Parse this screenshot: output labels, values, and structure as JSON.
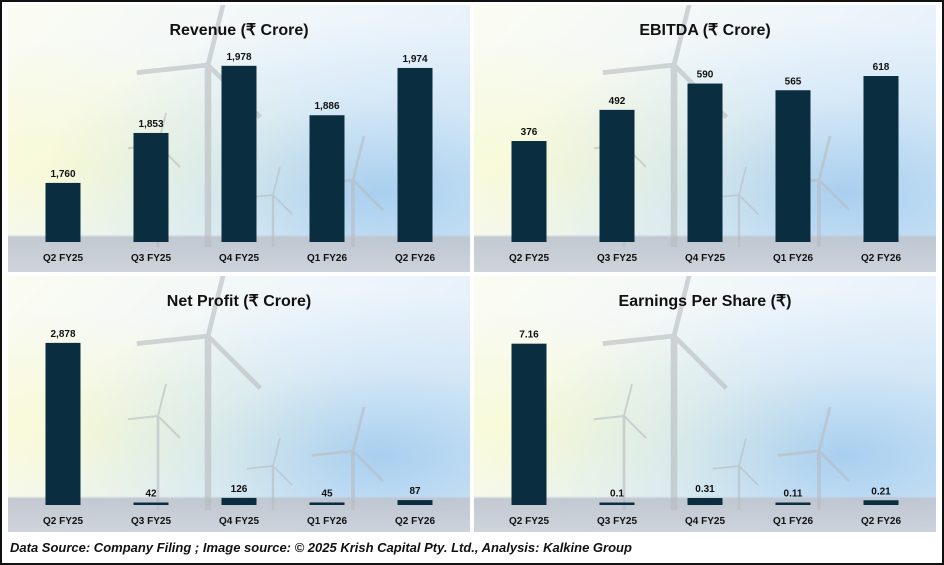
{
  "footer": "Data Source: Company Filing ; Image source: © 2025 Krish Capital Pty. Ltd., Analysis: Kalkine Group",
  "colors": {
    "bar": "#0b2d40",
    "text": "#111111"
  },
  "chart_data": [
    {
      "type": "bar",
      "title": "Revenue (₹ Crore)",
      "categories": [
        "Q2 FY25",
        "Q3 FY25",
        "Q4 FY25",
        "Q1 FY26",
        "Q2 FY26"
      ],
      "values": [
        1760,
        1853,
        1978,
        1886,
        1974
      ],
      "labels": [
        "1,760",
        "1,853",
        "1,978",
        "1,886",
        "1,974"
      ],
      "ylim": [
        1650,
        2000
      ],
      "xlabel": "",
      "ylabel": "",
      "grid": false
    },
    {
      "type": "bar",
      "title": "EBITDA (₹ Crore)",
      "categories": [
        "Q2 FY25",
        "Q3 FY25",
        "Q4 FY25",
        "Q1 FY26",
        "Q2 FY26"
      ],
      "values": [
        376,
        492,
        590,
        565,
        618
      ],
      "labels": [
        "376",
        "492",
        "590",
        "565",
        "618"
      ],
      "ylim": [
        0,
        700
      ],
      "xlabel": "",
      "ylabel": "",
      "grid": false
    },
    {
      "type": "bar",
      "title": "Net Profit (₹ Crore)",
      "categories": [
        "Q2 FY25",
        "Q3 FY25",
        "Q4 FY25",
        "Q1 FY26",
        "Q2 FY26"
      ],
      "values": [
        2878,
        42,
        126,
        45,
        87
      ],
      "labels": [
        "2,878",
        "42",
        "126",
        "45",
        "87"
      ],
      "ylim": [
        0,
        3200
      ],
      "xlabel": "",
      "ylabel": "",
      "grid": false
    },
    {
      "type": "bar",
      "title": "Earnings Per Share (₹)",
      "categories": [
        "Q2 FY25",
        "Q3 FY25",
        "Q4 FY25",
        "Q1 FY26",
        "Q2 FY26"
      ],
      "values": [
        7.16,
        0.1,
        0.31,
        0.11,
        0.21
      ],
      "labels": [
        "7.16",
        "0.1",
        "0.31",
        "0.11",
        "0.21"
      ],
      "ylim": [
        0,
        8
      ],
      "xlabel": "",
      "ylabel": "",
      "grid": false
    }
  ]
}
